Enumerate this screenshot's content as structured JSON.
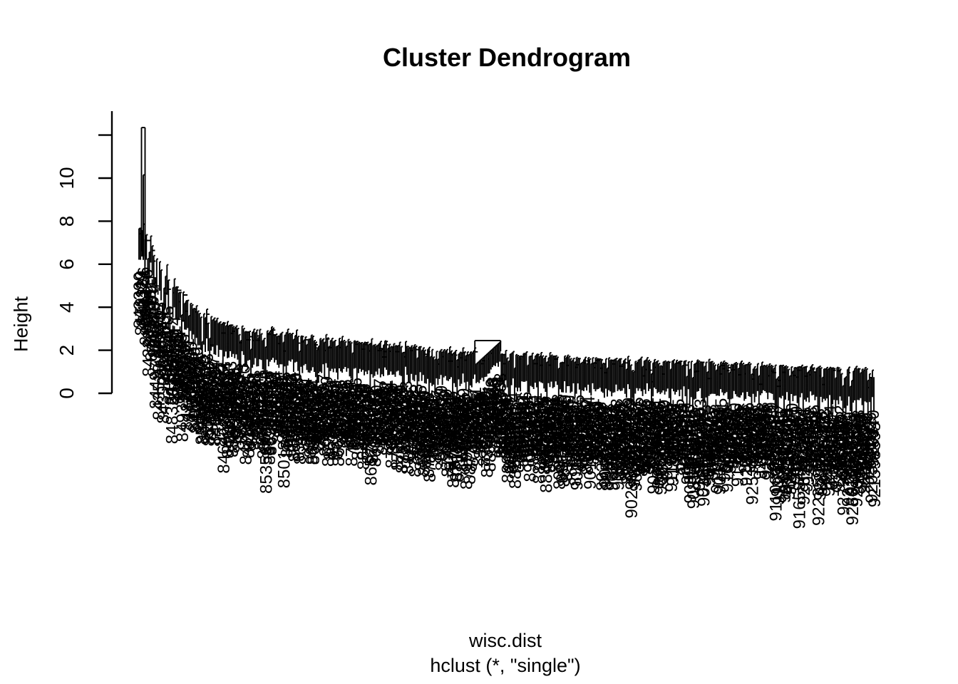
{
  "figure": {
    "title": "Cluster Dendrogram",
    "y_axis_label": "Height",
    "caption_line1": "wisc.dist",
    "caption_line2": "hclust (*, \"single\")"
  },
  "chart_data": {
    "type": "dendrogram",
    "title": "Cluster Dendrogram",
    "ylabel": "Height",
    "xlabel": "wisc.dist",
    "method_caption": "hclust (*, \"single\")",
    "clustering": {
      "function": "hclust",
      "method": "single",
      "distance_object": "wisc.dist"
    },
    "y_axis": {
      "labeled_ticks": [
        0,
        2,
        4,
        6,
        8,
        10
      ],
      "unlabeled_tick": 12,
      "tick_step": 2,
      "range_drawn": [
        0,
        12.4
      ]
    },
    "max_merge_height": 12.35,
    "rightmost_merge_height": 1.15,
    "peak": {
      "position_fraction": 0.005,
      "height": 12.35,
      "inner_step_height": 10.15
    },
    "envelope_height_by_position": [
      [
        0.0,
        8.3
      ],
      [
        0.01,
        7.6
      ],
      [
        0.019,
        6.8
      ],
      [
        0.044,
        5.3
      ],
      [
        0.068,
        4.3
      ],
      [
        0.106,
        3.5
      ],
      [
        0.155,
        3.0
      ],
      [
        0.208,
        2.8
      ],
      [
        0.305,
        2.45
      ],
      [
        0.399,
        2.12
      ],
      [
        0.54,
        1.82
      ],
      [
        0.66,
        1.62
      ],
      [
        0.789,
        1.49
      ],
      [
        0.889,
        1.27
      ],
      [
        1.0,
        1.15
      ]
    ],
    "arch_feature": {
      "x_fraction_start": 0.457,
      "x_fraction_end": 0.492,
      "bar_height": 2.45,
      "cascade_bottom_height": 1.32
    },
    "leaves": {
      "count_estimate": 500,
      "hang_units_typical": 1.4,
      "label_digit_counts": [
        6,
        7,
        8,
        9
      ],
      "label_prefix_range": [
        84,
        92
      ],
      "labels_rotated_degrees": 90
    },
    "render_seed": 20240607
  }
}
